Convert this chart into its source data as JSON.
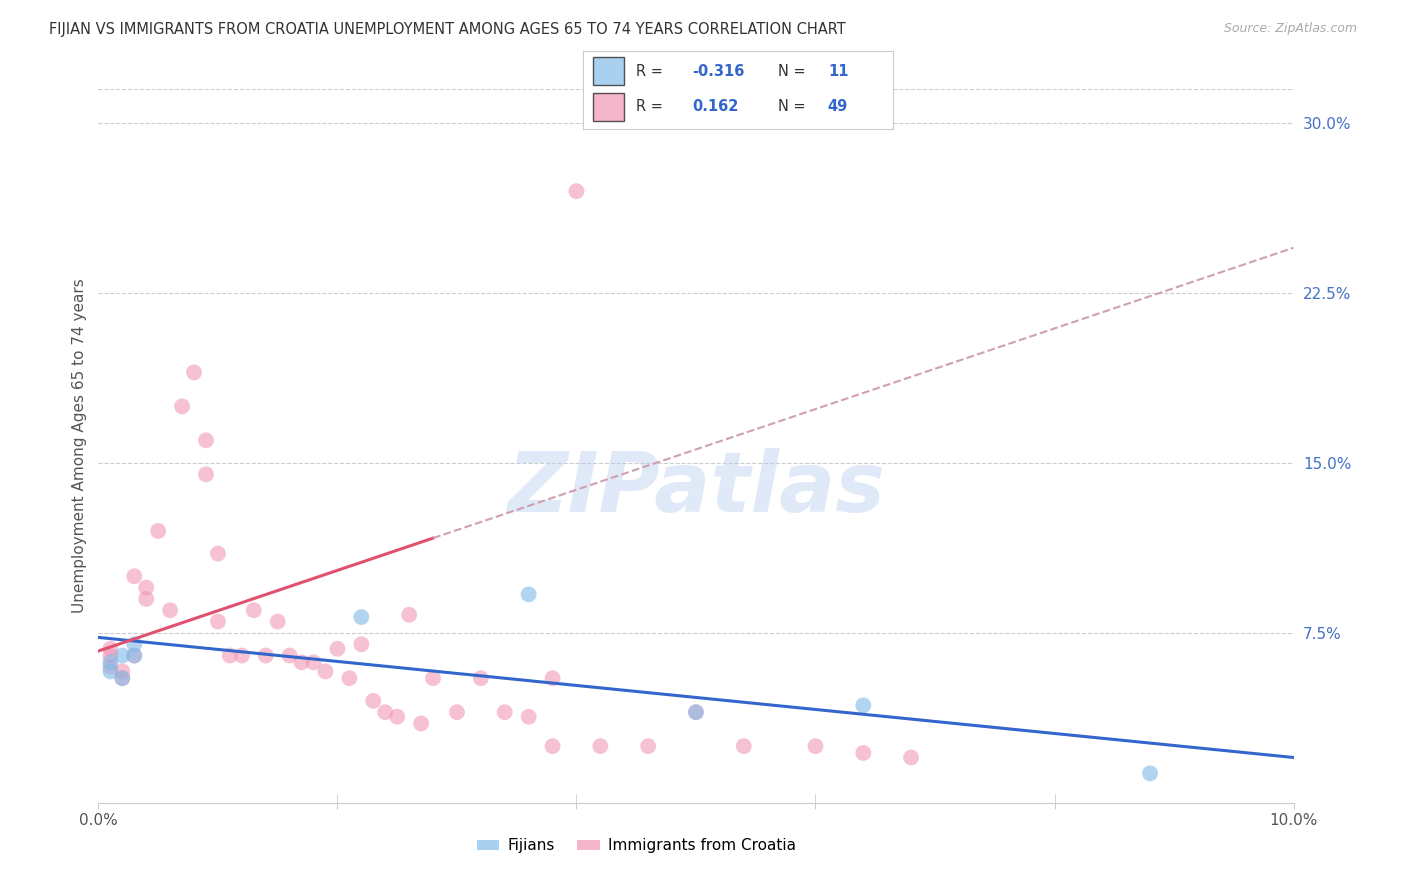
{
  "title": "FIJIAN VS IMMIGRANTS FROM CROATIA UNEMPLOYMENT AMONG AGES 65 TO 74 YEARS CORRELATION CHART",
  "source": "Source: ZipAtlas.com",
  "ylabel": "Unemployment Among Ages 65 to 74 years",
  "xlim": [
    0.0,
    0.1
  ],
  "ylim": [
    0.0,
    0.315
  ],
  "yticks_right": [
    0.075,
    0.15,
    0.225,
    0.3
  ],
  "yticklabels_right": [
    "7.5%",
    "15.0%",
    "22.5%",
    "30.0%"
  ],
  "fijians_x": [
    0.001,
    0.001,
    0.002,
    0.002,
    0.003,
    0.003,
    0.022,
    0.036,
    0.05,
    0.064,
    0.088
  ],
  "fijians_y": [
    0.058,
    0.062,
    0.065,
    0.055,
    0.07,
    0.065,
    0.082,
    0.092,
    0.04,
    0.043,
    0.013
  ],
  "croatia_x": [
    0.001,
    0.001,
    0.001,
    0.002,
    0.002,
    0.003,
    0.003,
    0.004,
    0.004,
    0.005,
    0.006,
    0.007,
    0.008,
    0.009,
    0.009,
    0.01,
    0.01,
    0.011,
    0.012,
    0.013,
    0.014,
    0.015,
    0.016,
    0.017,
    0.018,
    0.019,
    0.02,
    0.021,
    0.022,
    0.023,
    0.024,
    0.025,
    0.026,
    0.027,
    0.028,
    0.03,
    0.032,
    0.034,
    0.036,
    0.038,
    0.04,
    0.042,
    0.046,
    0.05,
    0.054,
    0.06,
    0.064,
    0.068,
    0.038
  ],
  "croatia_y": [
    0.065,
    0.068,
    0.06,
    0.058,
    0.055,
    0.065,
    0.1,
    0.095,
    0.09,
    0.12,
    0.085,
    0.175,
    0.19,
    0.16,
    0.145,
    0.08,
    0.11,
    0.065,
    0.065,
    0.085,
    0.065,
    0.08,
    0.065,
    0.062,
    0.062,
    0.058,
    0.068,
    0.055,
    0.07,
    0.045,
    0.04,
    0.038,
    0.083,
    0.035,
    0.055,
    0.04,
    0.055,
    0.04,
    0.038,
    0.025,
    0.27,
    0.025,
    0.025,
    0.04,
    0.025,
    0.025,
    0.022,
    0.02,
    0.055
  ],
  "fijian_scatter_color": "#7db8e8",
  "croatia_scatter_color": "#f090b0",
  "fijian_line_color": "#3366cc",
  "croatia_line_color": "#e05070",
  "trend_dash_color": "#d0a0b0",
  "R_fijian": -0.316,
  "N_fijian": 11,
  "R_croatia": 0.162,
  "N_croatia": 49,
  "legend_fijian_label": "Fijians",
  "legend_croatia_label": "Immigrants from Croatia",
  "watermark": "ZIPatlas",
  "background_color": "#ffffff",
  "grid_color": "#cccccc"
}
